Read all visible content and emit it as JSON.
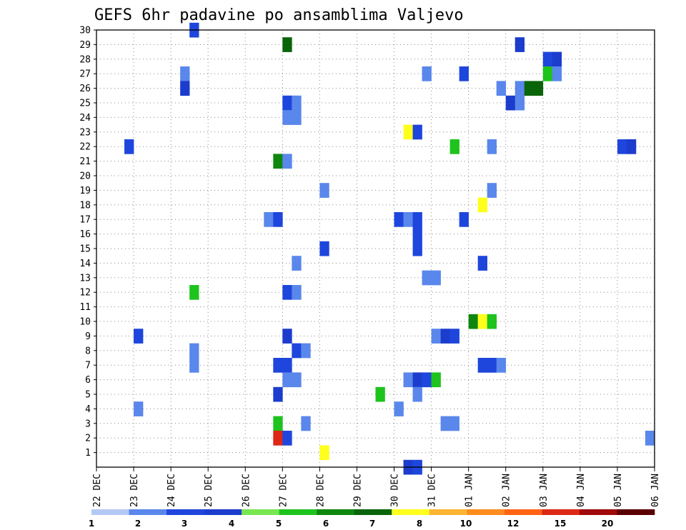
{
  "chart_data": {
    "type": "heatmap",
    "title": "GEFS 6hr padavine po ansamblima Valjevo",
    "x_tick_labels": [
      "22 DEC",
      "23 DEC",
      "24 DEC",
      "25 DEC",
      "26 DEC",
      "27 DEC",
      "28 DEC",
      "29 DEC",
      "30 DEC",
      "31 DEC",
      "01 JAN",
      "02 JAN",
      "03 JAN",
      "04 JAN",
      "05 JAN",
      "06 JAN"
    ],
    "y_tick_labels": [
      "1",
      "2",
      "3",
      "4",
      "5",
      "6",
      "7",
      "8",
      "9",
      "10",
      "11",
      "12",
      "13",
      "14",
      "15",
      "16",
      "17",
      "18",
      "19",
      "20",
      "21",
      "22",
      "23",
      "24",
      "25",
      "26",
      "27",
      "28",
      "29",
      "30"
    ],
    "x_unit": "days since 22 DEC, 6-hourly steps",
    "xlim": [
      0,
      15
    ],
    "ylim": [
      0,
      30
    ],
    "grid": true,
    "colorbar": {
      "tick_labels": [
        "1",
        "2",
        "3",
        "4",
        "5",
        "6",
        "7",
        "8",
        "10",
        "12",
        "15",
        "20"
      ],
      "colors": [
        "#b4c8f5",
        "#5a87eb",
        "#1e46dc",
        "#1c3ccd",
        "#78e650",
        "#1ec31e",
        "#0f870f",
        "#0a640a",
        "#ffff1e",
        "#ffb432",
        "#ff8c1e",
        "#ff6414",
        "#dc2814",
        "#a00a0a",
        "#5a0000"
      ]
    },
    "cells": [
      [
        2.5,
        30,
        2
      ],
      [
        5.0,
        29,
        7
      ],
      [
        11.25,
        29,
        3
      ],
      [
        12.0,
        28,
        2
      ],
      [
        12.25,
        28,
        3
      ],
      [
        2.25,
        27,
        1
      ],
      [
        8.75,
        27,
        1
      ],
      [
        9.75,
        27,
        2
      ],
      [
        12.0,
        27,
        5
      ],
      [
        12.25,
        27,
        1
      ],
      [
        2.25,
        26,
        3
      ],
      [
        10.75,
        26,
        1
      ],
      [
        11.25,
        26,
        1
      ],
      [
        11.5,
        26,
        7
      ],
      [
        11.75,
        26,
        7
      ],
      [
        5.0,
        25,
        2
      ],
      [
        5.25,
        25,
        1
      ],
      [
        11.0,
        25,
        3
      ],
      [
        11.25,
        25,
        1
      ],
      [
        5.0,
        24,
        1
      ],
      [
        5.25,
        24,
        1
      ],
      [
        8.25,
        23,
        8
      ],
      [
        8.5,
        23,
        2
      ],
      [
        0.75,
        22,
        2
      ],
      [
        9.5,
        22,
        5
      ],
      [
        10.5,
        22,
        1
      ],
      [
        14.0,
        22,
        2
      ],
      [
        14.25,
        22,
        3
      ],
      [
        4.75,
        21,
        6
      ],
      [
        5.0,
        21,
        1
      ],
      [
        6.0,
        19,
        1
      ],
      [
        10.5,
        19,
        1
      ],
      [
        10.25,
        18,
        8
      ],
      [
        4.5,
        17,
        1
      ],
      [
        4.75,
        17,
        2
      ],
      [
        8.0,
        17,
        2
      ],
      [
        8.25,
        17,
        1
      ],
      [
        8.5,
        17,
        2
      ],
      [
        9.75,
        17,
        2
      ],
      [
        8.5,
        16,
        2
      ],
      [
        6.0,
        15,
        2
      ],
      [
        8.5,
        15,
        2
      ],
      [
        5.25,
        14,
        1
      ],
      [
        10.25,
        14,
        2
      ],
      [
        8.75,
        13,
        1
      ],
      [
        9.0,
        13,
        1
      ],
      [
        2.5,
        12,
        5
      ],
      [
        5.0,
        12,
        2
      ],
      [
        5.25,
        12,
        1
      ],
      [
        10.0,
        10,
        6
      ],
      [
        10.25,
        10,
        8
      ],
      [
        10.5,
        10,
        5
      ],
      [
        1.0,
        9,
        2
      ],
      [
        5.0,
        9,
        3
      ],
      [
        9.0,
        9,
        1
      ],
      [
        9.25,
        9,
        3
      ],
      [
        9.5,
        9,
        2
      ],
      [
        2.5,
        8,
        1
      ],
      [
        5.25,
        8,
        2
      ],
      [
        5.5,
        8,
        1
      ],
      [
        2.5,
        7,
        1
      ],
      [
        4.75,
        7,
        2
      ],
      [
        5.0,
        7,
        2
      ],
      [
        10.25,
        7,
        2
      ],
      [
        10.5,
        7,
        2
      ],
      [
        10.75,
        7,
        1
      ],
      [
        5.0,
        6,
        1
      ],
      [
        5.25,
        6,
        1
      ],
      [
        8.25,
        6,
        1
      ],
      [
        8.5,
        6,
        3
      ],
      [
        8.75,
        6,
        2
      ],
      [
        9.0,
        6,
        5
      ],
      [
        4.75,
        5,
        3
      ],
      [
        7.5,
        5,
        5
      ],
      [
        8.5,
        5,
        1
      ],
      [
        1.0,
        4,
        1
      ],
      [
        8.0,
        4,
        1
      ],
      [
        4.75,
        3,
        5
      ],
      [
        5.5,
        3,
        1
      ],
      [
        9.25,
        3,
        1
      ],
      [
        9.5,
        3,
        1
      ],
      [
        4.75,
        2,
        12
      ],
      [
        5.0,
        2,
        2
      ],
      [
        14.75,
        2,
        1
      ],
      [
        6.0,
        1,
        8
      ],
      [
        8.25,
        0,
        3
      ],
      [
        8.5,
        0,
        2
      ]
    ]
  }
}
